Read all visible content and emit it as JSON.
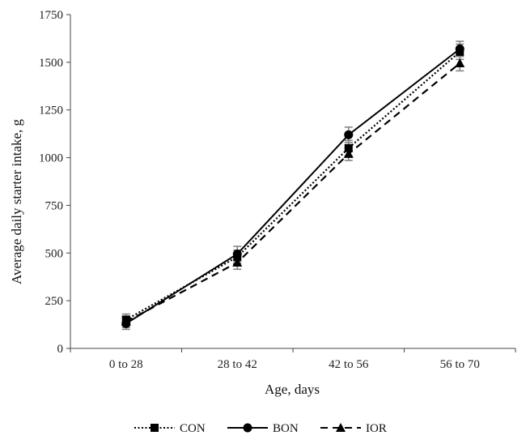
{
  "chart_data": {
    "type": "line",
    "title": "",
    "xlabel": "Age, days",
    "ylabel": "Average daily starter intake, g",
    "categories": [
      "0 to 28",
      "28 to 42",
      "42 to 56",
      "56 to 70"
    ],
    "ylim": [
      0,
      1750
    ],
    "yticks": [
      0,
      250,
      500,
      750,
      1000,
      1250,
      1500,
      1750
    ],
    "grid": false,
    "legend_position": "bottom",
    "series": [
      {
        "name": "CON",
        "values": [
          150,
          480,
          1050,
          1555
        ],
        "errors": [
          30,
          35,
          40,
          40
        ],
        "marker": "square",
        "line_style": "dotted",
        "color": "#000000"
      },
      {
        "name": "BON",
        "values": [
          130,
          495,
          1120,
          1570
        ],
        "errors": [
          30,
          40,
          40,
          40
        ],
        "marker": "circle",
        "line_style": "solid",
        "color": "#000000"
      },
      {
        "name": "IOR",
        "values": [
          140,
          450,
          1020,
          1495
        ],
        "errors": [
          30,
          35,
          35,
          40
        ],
        "marker": "triangle",
        "line_style": "dashed",
        "color": "#000000"
      }
    ],
    "error_bar_color": "#7f7f7f"
  }
}
